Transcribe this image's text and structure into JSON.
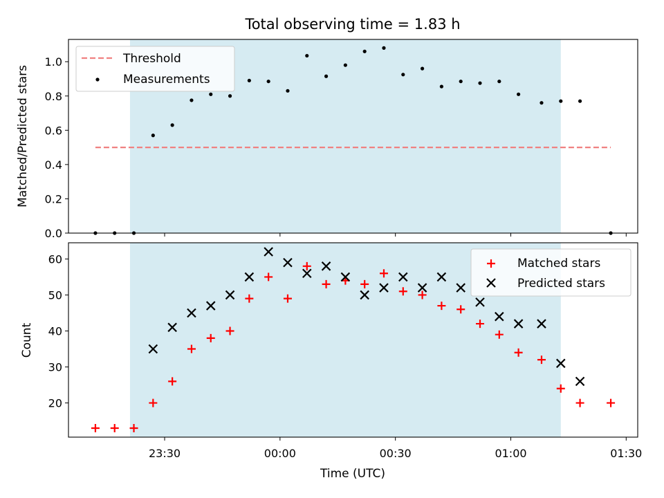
{
  "title": "Total observing time = 1.83 h",
  "chart_data": [
    {
      "type": "scatter",
      "ylabel": "Matched/Predicted stars",
      "xlim": [
        "23:05",
        "01:33"
      ],
      "ylim": [
        0,
        1.13
      ],
      "yticks": [
        0.0,
        0.2,
        0.4,
        0.6,
        0.8,
        1.0
      ],
      "ytick_labels": [
        "0.0",
        "0.2",
        "0.4",
        "0.6",
        "0.8",
        "1.0"
      ],
      "observing_window": [
        "23:21",
        "01:13"
      ],
      "legend_position": "upper-left",
      "threshold": {
        "name": "Threshold",
        "value": 0.5,
        "x_range": [
          "23:12",
          "01:26"
        ],
        "color": "#f08080"
      },
      "series": [
        {
          "name": "Measurements",
          "color": "#000000",
          "x": [
            "23:12",
            "23:17",
            "23:22",
            "23:27",
            "23:32",
            "23:37",
            "23:42",
            "23:47",
            "23:52",
            "23:57",
            "00:02",
            "00:07",
            "00:12",
            "00:17",
            "00:22",
            "00:27",
            "00:32",
            "00:37",
            "00:42",
            "00:47",
            "00:52",
            "00:57",
            "01:02",
            "01:08",
            "01:13",
            "01:18",
            "01:26"
          ],
          "values": [
            0.0,
            0.0,
            0.0,
            0.57,
            0.63,
            0.775,
            0.81,
            0.8,
            0.89,
            0.885,
            0.83,
            1.035,
            0.915,
            0.98,
            1.06,
            1.08,
            0.925,
            0.96,
            0.855,
            0.885,
            0.875,
            0.885,
            0.81,
            0.76,
            0.77,
            0.77,
            0.0
          ]
        }
      ]
    },
    {
      "type": "scatter",
      "xlabel": "Time (UTC)",
      "ylabel": "Count",
      "xlim": [
        "23:05",
        "01:33"
      ],
      "ylim": [
        10.5,
        64.5
      ],
      "yticks": [
        20,
        30,
        40,
        50,
        60
      ],
      "ytick_labels": [
        "20",
        "30",
        "40",
        "50",
        "60"
      ],
      "xticks": [
        "23:30",
        "00:00",
        "00:30",
        "01:00",
        "01:30"
      ],
      "observing_window": [
        "23:21",
        "01:13"
      ],
      "legend_position": "upper-right",
      "series": [
        {
          "name": "Matched stars",
          "marker": "+",
          "color": "#ff0000",
          "x": [
            "23:12",
            "23:17",
            "23:22",
            "23:27",
            "23:32",
            "23:37",
            "23:42",
            "23:47",
            "23:52",
            "23:57",
            "00:02",
            "00:07",
            "00:12",
            "00:17",
            "00:22",
            "00:27",
            "00:32",
            "00:37",
            "00:42",
            "00:47",
            "00:52",
            "00:57",
            "01:02",
            "01:08",
            "01:13",
            "01:18",
            "01:26"
          ],
          "values": [
            13,
            13,
            13,
            20,
            26,
            35,
            38,
            40,
            49,
            55,
            49,
            58,
            53,
            54,
            53,
            56,
            51,
            50,
            47,
            46,
            42,
            39,
            34,
            32,
            24,
            20,
            20
          ]
        },
        {
          "name": "Predicted stars",
          "marker": "x",
          "color": "#000000",
          "x": [
            "23:27",
            "23:32",
            "23:37",
            "23:42",
            "23:47",
            "23:52",
            "23:57",
            "00:02",
            "00:07",
            "00:12",
            "00:17",
            "00:22",
            "00:27",
            "00:32",
            "00:37",
            "00:42",
            "00:47",
            "00:52",
            "00:57",
            "01:02",
            "01:08",
            "01:13",
            "01:18"
          ],
          "values": [
            35,
            41,
            45,
            47,
            50,
            55,
            62,
            59,
            56,
            58,
            55,
            50,
            52,
            55,
            52,
            55,
            52,
            48,
            44,
            42,
            42,
            31,
            26
          ]
        }
      ]
    }
  ]
}
